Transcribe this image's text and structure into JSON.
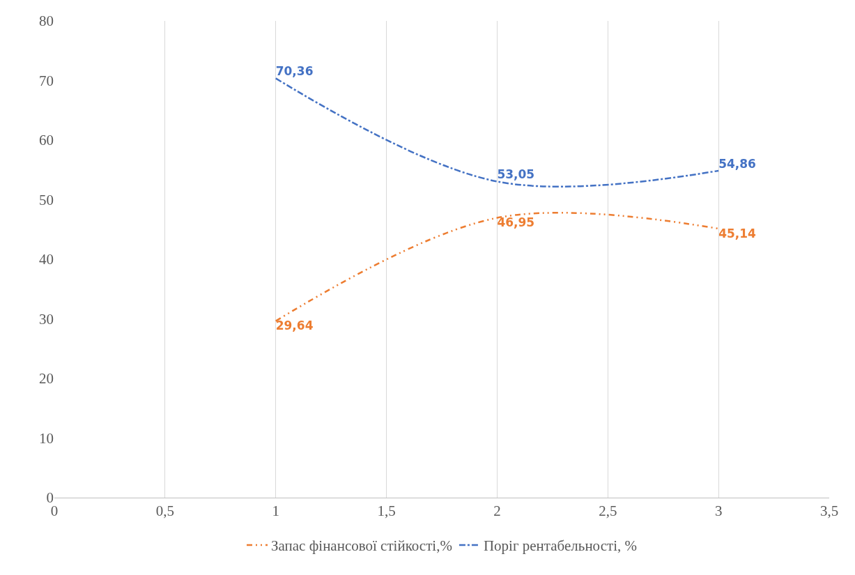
{
  "chart_data": {
    "type": "line",
    "x": [
      1,
      2,
      3
    ],
    "series": [
      {
        "name": "Запас фінансової стійкості,%",
        "color": "#ed7d31",
        "values": [
          29.64,
          46.95,
          45.14
        ],
        "value_labels": [
          "29,64",
          "46,95",
          "45,14"
        ],
        "line_style": "dashdotdot"
      },
      {
        "name": "Поріг рентабельності, %",
        "color": "#4472c4",
        "values": [
          70.36,
          53.05,
          54.86
        ],
        "value_labels": [
          "70,36",
          "53,05",
          "54,86"
        ],
        "line_style": "dashdot"
      }
    ],
    "xlim": [
      0,
      3.5
    ],
    "xticks": [
      0,
      {
        "value": 0.5,
        "label": "0,5"
      },
      1,
      {
        "value": 1.5,
        "label": "1,5"
      },
      2,
      {
        "value": 2.5,
        "label": "2,5"
      },
      3,
      {
        "value": 3.5,
        "label": "3,5"
      }
    ],
    "ylim": [
      0,
      80
    ],
    "yticks": [
      0,
      10,
      20,
      30,
      40,
      50,
      60,
      70,
      80
    ],
    "grid": "x",
    "legend": "bottom",
    "marker": "none"
  }
}
